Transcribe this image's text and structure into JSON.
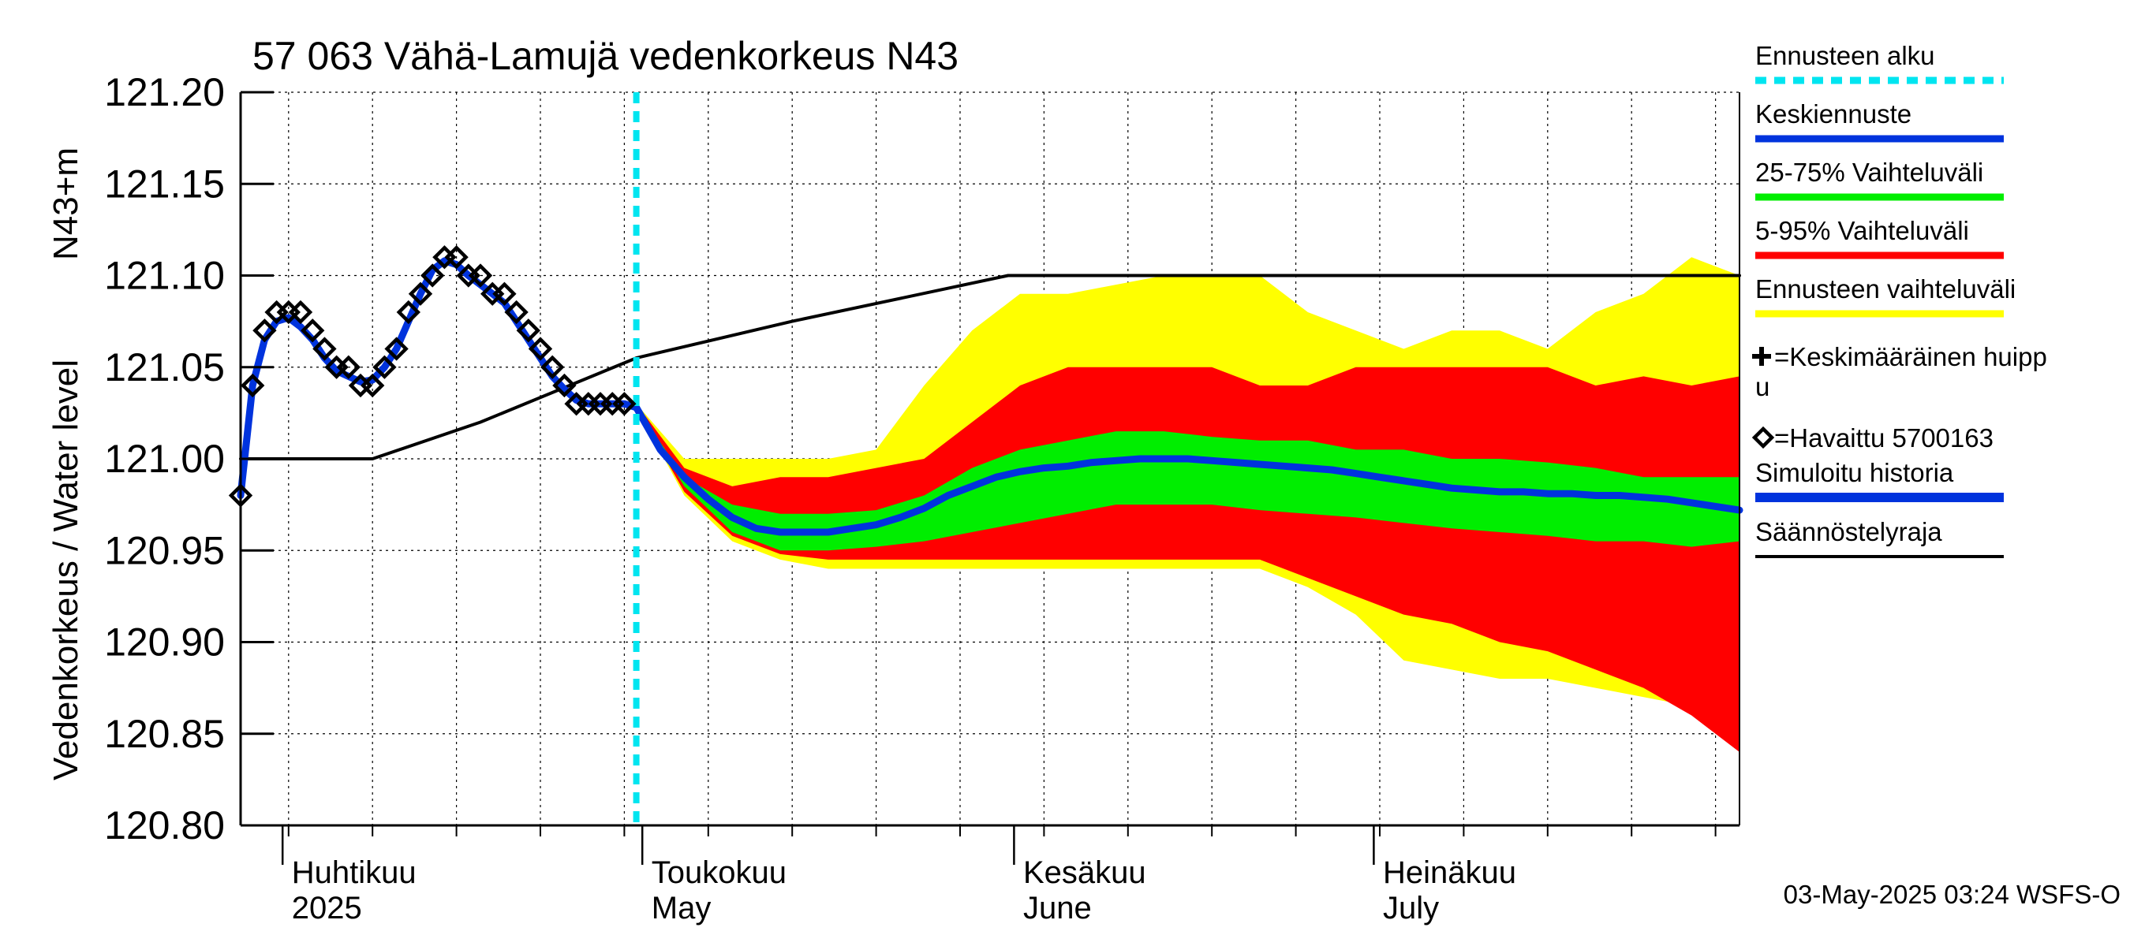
{
  "chart_data": {
    "type": "line",
    "title": "57 063 Vähä-Lamujä vedenkorkeus N43",
    "ylabel_main": "Vedenkorkeus / Water level",
    "ylabel_unit": "N43+m",
    "ylim": [
      120.8,
      121.2
    ],
    "y_ticks": [
      "121.20",
      "121.15",
      "121.10",
      "121.05",
      "121.00",
      "120.95",
      "120.90",
      "120.85",
      "120.80"
    ],
    "x_start": "2025-03-28",
    "x_end": "2025-07-31",
    "x_month_labels": [
      {
        "date": "2025-04-01",
        "line1": "Huhtikuu",
        "line2": "2025"
      },
      {
        "date": "2025-05-01",
        "line1": "Toukokuu",
        "line2": "May"
      },
      {
        "date": "2025-06-01",
        "line1": "Kesäkuu",
        "line2": "June"
      },
      {
        "date": "2025-07-01",
        "line1": "Heinäkuu",
        "line2": "July"
      }
    ],
    "forecast_start": "2025-04-30",
    "grid": true,
    "legend_position": "right",
    "legend": [
      {
        "key": "forecast_start",
        "label": "Ennusteen alku",
        "color": "#00e5f0",
        "style": "dashed"
      },
      {
        "key": "mean_forecast",
        "label": "Keskiennuste",
        "color": "#0033dd",
        "style": "line"
      },
      {
        "key": "p25_75",
        "label": "25-75% Vaihteluväli",
        "color": "#00ee00",
        "style": "line"
      },
      {
        "key": "p5_95",
        "label": "5-95% Vaihteluväli",
        "color": "#ff0000",
        "style": "line"
      },
      {
        "key": "range",
        "label": "Ennusteen vaihteluväli",
        "color": "#ffff00",
        "style": "line"
      },
      {
        "key": "mean_peak",
        "label": "=Keskimääräinen huippu",
        "symbol": "plus"
      },
      {
        "key": "observed",
        "label": "=Havaittu 5700163",
        "symbol": "diamond"
      },
      {
        "key": "simulated",
        "label": "Simuloitu historia",
        "color": "#0033dd",
        "style": "thick"
      },
      {
        "key": "regulation",
        "label": "Säännöstelyraja",
        "color": "#000000",
        "style": "line"
      }
    ],
    "colors": {
      "range": "#ffff00",
      "p5_95": "#ff0000",
      "p25_75": "#00ee00",
      "mean": "#0033dd",
      "forecast_start": "#00e5f0",
      "regulation": "#000000"
    },
    "series": {
      "regulation_limit": {
        "x": [
          "2025-03-28",
          "2025-04-08",
          "2025-04-17",
          "2025-04-30",
          "2025-05-13",
          "2025-05-31",
          "2025-07-31"
        ],
        "y": [
          121.0,
          121.0,
          121.02,
          121.055,
          121.075,
          121.1,
          121.1
        ]
      },
      "observed": {
        "x": [
          "2025-03-28",
          "2025-03-29",
          "2025-03-30",
          "2025-03-31",
          "2025-04-01",
          "2025-04-02",
          "2025-04-03",
          "2025-04-04",
          "2025-04-05",
          "2025-04-06",
          "2025-04-07",
          "2025-04-08",
          "2025-04-09",
          "2025-04-10",
          "2025-04-11",
          "2025-04-12",
          "2025-04-13",
          "2025-04-14",
          "2025-04-15",
          "2025-04-16",
          "2025-04-17",
          "2025-04-18",
          "2025-04-19",
          "2025-04-20",
          "2025-04-21",
          "2025-04-22",
          "2025-04-23",
          "2025-04-24",
          "2025-04-25",
          "2025-04-26",
          "2025-04-27",
          "2025-04-28",
          "2025-04-29"
        ],
        "y": [
          120.98,
          121.04,
          121.07,
          121.08,
          121.08,
          121.08,
          121.07,
          121.06,
          121.05,
          121.05,
          121.04,
          121.04,
          121.05,
          121.06,
          121.08,
          121.09,
          121.1,
          121.11,
          121.11,
          121.1,
          121.1,
          121.09,
          121.09,
          121.08,
          121.07,
          121.06,
          121.05,
          121.04,
          121.03,
          121.03,
          121.03,
          121.03,
          121.03
        ]
      },
      "simulated": {
        "x": [
          "2025-03-28",
          "2025-03-29",
          "2025-03-30",
          "2025-03-31",
          "2025-04-01",
          "2025-04-02",
          "2025-04-03",
          "2025-04-04",
          "2025-04-05",
          "2025-04-06",
          "2025-04-07",
          "2025-04-08",
          "2025-04-09",
          "2025-04-10",
          "2025-04-11",
          "2025-04-12",
          "2025-04-13",
          "2025-04-14",
          "2025-04-15",
          "2025-04-16",
          "2025-04-17",
          "2025-04-18",
          "2025-04-19",
          "2025-04-20",
          "2025-04-21",
          "2025-04-22",
          "2025-04-23",
          "2025-04-24",
          "2025-04-25",
          "2025-04-26",
          "2025-04-27",
          "2025-04-28",
          "2025-04-29",
          "2025-04-30"
        ],
        "y": [
          120.98,
          121.04,
          121.065,
          121.075,
          121.077,
          121.072,
          121.065,
          121.055,
          121.048,
          121.045,
          121.042,
          121.043,
          121.05,
          121.06,
          121.075,
          121.09,
          121.103,
          121.108,
          121.106,
          121.1,
          121.095,
          121.09,
          121.085,
          121.075,
          121.065,
          121.055,
          121.045,
          121.038,
          121.032,
          121.03,
          121.03,
          121.03,
          121.03,
          121.028
        ]
      },
      "mean_forecast": {
        "x": [
          "2025-04-30",
          "2025-05-02",
          "2025-05-04",
          "2025-05-06",
          "2025-05-08",
          "2025-05-10",
          "2025-05-12",
          "2025-05-14",
          "2025-05-16",
          "2025-05-18",
          "2025-05-20",
          "2025-05-22",
          "2025-05-24",
          "2025-05-26",
          "2025-05-28",
          "2025-05-30",
          "2025-06-01",
          "2025-06-03",
          "2025-06-05",
          "2025-06-07",
          "2025-06-09",
          "2025-06-11",
          "2025-06-13",
          "2025-06-15",
          "2025-06-17",
          "2025-06-19",
          "2025-06-21",
          "2025-06-23",
          "2025-06-25",
          "2025-06-27",
          "2025-06-29",
          "2025-07-01",
          "2025-07-03",
          "2025-07-05",
          "2025-07-07",
          "2025-07-09",
          "2025-07-11",
          "2025-07-13",
          "2025-07-15",
          "2025-07-17",
          "2025-07-19",
          "2025-07-21",
          "2025-07-23",
          "2025-07-25",
          "2025-07-27",
          "2025-07-29",
          "2025-07-31"
        ],
        "y": [
          121.028,
          121.005,
          120.99,
          120.978,
          120.968,
          120.962,
          120.96,
          120.96,
          120.96,
          120.962,
          120.964,
          120.968,
          120.973,
          120.98,
          120.985,
          120.99,
          120.993,
          120.995,
          120.996,
          120.998,
          120.999,
          121.0,
          121.0,
          121.0,
          120.999,
          120.998,
          120.997,
          120.996,
          120.995,
          120.994,
          120.992,
          120.99,
          120.988,
          120.986,
          120.984,
          120.983,
          120.982,
          120.982,
          120.981,
          120.981,
          120.98,
          120.98,
          120.979,
          120.978,
          120.976,
          120.974,
          120.972
        ]
      },
      "band_x": [
        "2025-04-30",
        "2025-05-04",
        "2025-05-08",
        "2025-05-12",
        "2025-05-16",
        "2025-05-20",
        "2025-05-24",
        "2025-05-28",
        "2025-06-01",
        "2025-06-05",
        "2025-06-09",
        "2025-06-13",
        "2025-06-17",
        "2025-06-21",
        "2025-06-25",
        "2025-06-29",
        "2025-07-03",
        "2025-07-07",
        "2025-07-11",
        "2025-07-15",
        "2025-07-19",
        "2025-07-23",
        "2025-07-27",
        "2025-07-31"
      ],
      "range_upper": [
        121.03,
        121.0,
        121.0,
        121.0,
        121.0,
        121.005,
        121.04,
        121.07,
        121.09,
        121.09,
        121.095,
        121.1,
        121.1,
        121.1,
        121.08,
        121.07,
        121.06,
        121.07,
        121.07,
        121.06,
        121.08,
        121.09,
        121.11,
        121.1
      ],
      "p95_upper": [
        121.03,
        120.995,
        120.985,
        120.99,
        120.99,
        120.995,
        121.0,
        121.02,
        121.04,
        121.05,
        121.05,
        121.05,
        121.05,
        121.04,
        121.04,
        121.05,
        121.05,
        121.05,
        121.05,
        121.05,
        121.04,
        121.045,
        121.04,
        121.045
      ],
      "p75_upper": [
        121.028,
        120.99,
        120.975,
        120.97,
        120.97,
        120.972,
        120.98,
        120.995,
        121.005,
        121.01,
        121.015,
        121.015,
        121.012,
        121.01,
        121.01,
        121.005,
        121.005,
        121.0,
        121.0,
        120.998,
        120.995,
        120.99,
        120.99,
        120.99
      ],
      "p25_lower": [
        121.028,
        120.985,
        120.96,
        120.95,
        120.95,
        120.952,
        120.955,
        120.96,
        120.965,
        120.97,
        120.975,
        120.975,
        120.975,
        120.972,
        120.97,
        120.968,
        120.965,
        120.962,
        120.96,
        120.958,
        120.955,
        120.955,
        120.952,
        120.955
      ],
      "p5_lower": [
        121.028,
        120.982,
        120.958,
        120.948,
        120.945,
        120.945,
        120.945,
        120.945,
        120.945,
        120.945,
        120.945,
        120.945,
        120.945,
        120.945,
        120.935,
        120.925,
        120.915,
        120.91,
        120.9,
        120.895,
        120.885,
        120.875,
        120.86,
        120.84
      ],
      "range_lower": [
        121.028,
        120.98,
        120.955,
        120.945,
        120.94,
        120.94,
        120.94,
        120.94,
        120.94,
        120.94,
        120.94,
        120.94,
        120.94,
        120.94,
        120.93,
        120.915,
        120.89,
        120.885,
        120.88,
        120.88,
        120.875,
        120.87,
        120.865,
        120.855
      ]
    }
  },
  "footer": {
    "timestamp": "03-May-2025 03:24 WSFS-O"
  }
}
